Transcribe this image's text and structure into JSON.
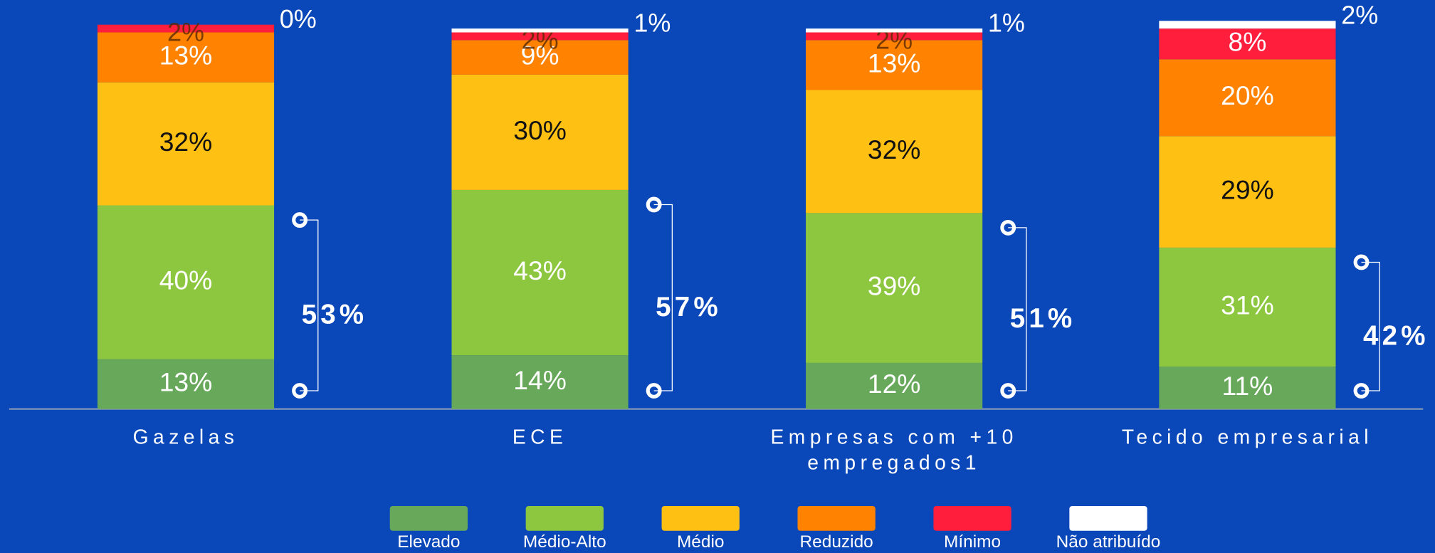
{
  "chart_data": {
    "type": "stacked_bar",
    "categories": [
      "Gazelas",
      "ECE",
      "Empresas com +10 empregados1",
      "Tecido empresarial"
    ],
    "ylim": [
      0,
      100
    ],
    "legend": "bottom",
    "series": [
      {
        "name": "Elevado",
        "color": "#67a85a",
        "values": [
          13,
          14,
          12,
          11
        ],
        "value_labels": [
          "13%",
          "14%",
          "12%",
          "11%"
        ]
      },
      {
        "name": "Médio-Alto",
        "color": "#8dc63f",
        "values": [
          40,
          43,
          39,
          31
        ],
        "value_labels": [
          "40%",
          "43%",
          "39%",
          "31%"
        ]
      },
      {
        "name": "Médio",
        "color": "#ffc014",
        "values": [
          32,
          30,
          32,
          29
        ],
        "value_labels": [
          "32%",
          "30%",
          "32%",
          "29%"
        ]
      },
      {
        "name": "Reduzido",
        "color": "#ff8200",
        "values": [
          13,
          9,
          13,
          20
        ],
        "value_labels": [
          "13%",
          "9%",
          "13%",
          "20%"
        ]
      },
      {
        "name": "Mínimo",
        "color": "#ff1e3c",
        "values": [
          2,
          2,
          2,
          8
        ],
        "value_labels": [
          "2%",
          "2%",
          "2%",
          "8%"
        ]
      },
      {
        "name": "Não atribuído",
        "color": "#ffffff",
        "values": [
          0,
          1,
          1,
          2
        ],
        "value_labels": [
          "0%",
          "1%",
          "1%",
          "2%"
        ]
      }
    ],
    "annotations": [
      "53%",
      "57%",
      "51%",
      "42%"
    ]
  }
}
